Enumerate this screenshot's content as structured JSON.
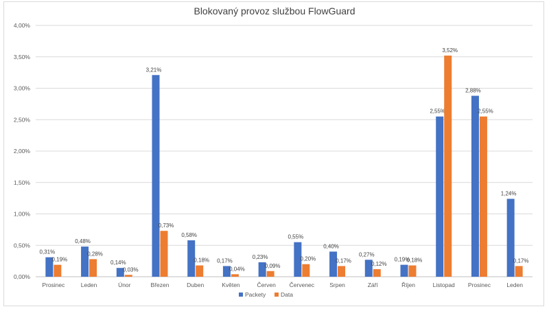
{
  "chart_data": {
    "type": "bar",
    "title": "Blokovaný provoz službou FlowGuard",
    "categories": [
      "Prosinec",
      "Leden",
      "Únor",
      "Březen",
      "Duben",
      "Květen",
      "Červen",
      "Červenec",
      "Srpen",
      "Září",
      "Říjen",
      "Listopad",
      "Prosinec",
      "Leden"
    ],
    "series": [
      {
        "name": "Packety",
        "color": "#4472C4",
        "values": [
          0.31,
          0.48,
          0.14,
          3.21,
          0.58,
          0.17,
          0.23,
          0.55,
          0.4,
          0.27,
          0.19,
          2.55,
          2.88,
          1.24
        ],
        "labels": [
          "0,31%",
          "0,48%",
          "0,14%",
          "3,21%",
          "0,58%",
          "0,17%",
          "0,23%",
          "0,55%",
          "0,40%",
          "0,27%",
          "0,19%",
          "2,55%",
          "2,88%",
          "1,24%"
        ]
      },
      {
        "name": "Data",
        "color": "#ED7D31",
        "values": [
          0.19,
          0.28,
          0.03,
          0.73,
          0.18,
          0.04,
          0.09,
          0.2,
          0.17,
          0.12,
          0.18,
          3.52,
          2.55,
          0.17
        ],
        "labels": [
          "0,19%",
          "0,28%",
          "0,03%",
          "0,73%",
          "0,18%",
          "0,04%",
          "0,09%",
          "0,20%",
          "0,17%",
          "0,12%",
          "0,18%",
          "3,52%",
          "2,55%",
          "0,17%"
        ]
      }
    ],
    "ylim": [
      0,
      4
    ],
    "yticks": [
      0,
      0.5,
      1,
      1.5,
      2,
      2.5,
      3,
      3.5,
      4
    ],
    "ytick_labels": [
      "0,00%",
      "0,50%",
      "1,00%",
      "1,50%",
      "2,00%",
      "2,50%",
      "3,00%",
      "3,50%",
      "4,00%"
    ],
    "grid": true,
    "legend_position": "bottom"
  }
}
